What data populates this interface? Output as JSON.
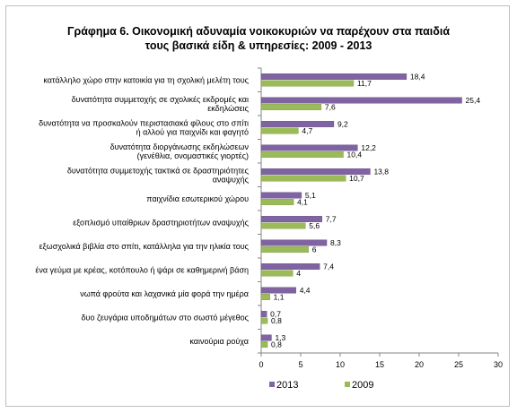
{
  "chart_data": {
    "type": "bar",
    "orientation": "horizontal",
    "title": "Γράφημα 6. Οικονομική αδυναμία  νοικοκυριών να παρέχουν στα παιδιά",
    "subtitle": "τους βασικά είδη & υπηρεσίες: 2009 - 2013",
    "categories": [
      [
        "κατάλληλο χώρο στην κατοικία για τη σχολική μελέτη τους"
      ],
      [
        "δυνατότητα συμμετοχής σε σχολικές εκδρομές και",
        "εκδηλώσεις"
      ],
      [
        "δυνατότητα να προσκαλούν περιστασιακά φίλους στο σπίτι",
        "ή αλλού για παιχνίδι και φαγητό"
      ],
      [
        "δυνατότητα διοργάνωσης εκδηλώσεων",
        "(γενέθλια, ονομαστικές γιορτές)"
      ],
      [
        "δυνατότητα συμμετοχής τακτικά σε δραστηριότητες",
        "αναψυχής"
      ],
      [
        "παιχνίδια εσωτερικού χώρου"
      ],
      [
        "εξοπλισμό υπαίθριων δραστηριοτήτων αναψυχής"
      ],
      [
        "εξωσχολικά βιβλία στο σπίτι, κατάλληλα για την ηλικία τους"
      ],
      [
        "ένα γεύμα με κρέας, κοτόπουλο ή ψάρι σε καθημερινή βάση"
      ],
      [
        "νωπά φρούτα και λαχανικά μία φορά την ημέρα"
      ],
      [
        "δυο ζευγάρια υποδημάτων στο σωστό μέγεθος"
      ],
      [
        "καινούρια ρούχα"
      ]
    ],
    "series": [
      {
        "name": "2013",
        "color": "#8064a2",
        "values": [
          18.4,
          25.4,
          9.2,
          12.2,
          13.8,
          5.1,
          7.7,
          8.3,
          7.4,
          4.4,
          0.7,
          1.3
        ],
        "labels": [
          "18,4",
          "25,4",
          "9,2",
          "12,2",
          "13,8",
          "5,1",
          "7,7",
          "8,3",
          "7,4",
          "4,4",
          "0,7",
          "1,3"
        ]
      },
      {
        "name": "2009",
        "color": "#9bbb59",
        "values": [
          11.7,
          7.6,
          4.7,
          10.4,
          10.7,
          4.1,
          5.6,
          6,
          4,
          1.1,
          0.8,
          0.8
        ],
        "labels": [
          "11,7",
          "7,6",
          "4,7",
          "10,4",
          "10,7",
          "4,1",
          "5,6",
          "6",
          "4",
          "1,1",
          "0,8",
          "0,8"
        ]
      }
    ],
    "xlim": [
      0,
      30
    ],
    "xticks": [
      0,
      5,
      10,
      15,
      20,
      25,
      30
    ],
    "legend_position": "bottom",
    "grid": false
  }
}
